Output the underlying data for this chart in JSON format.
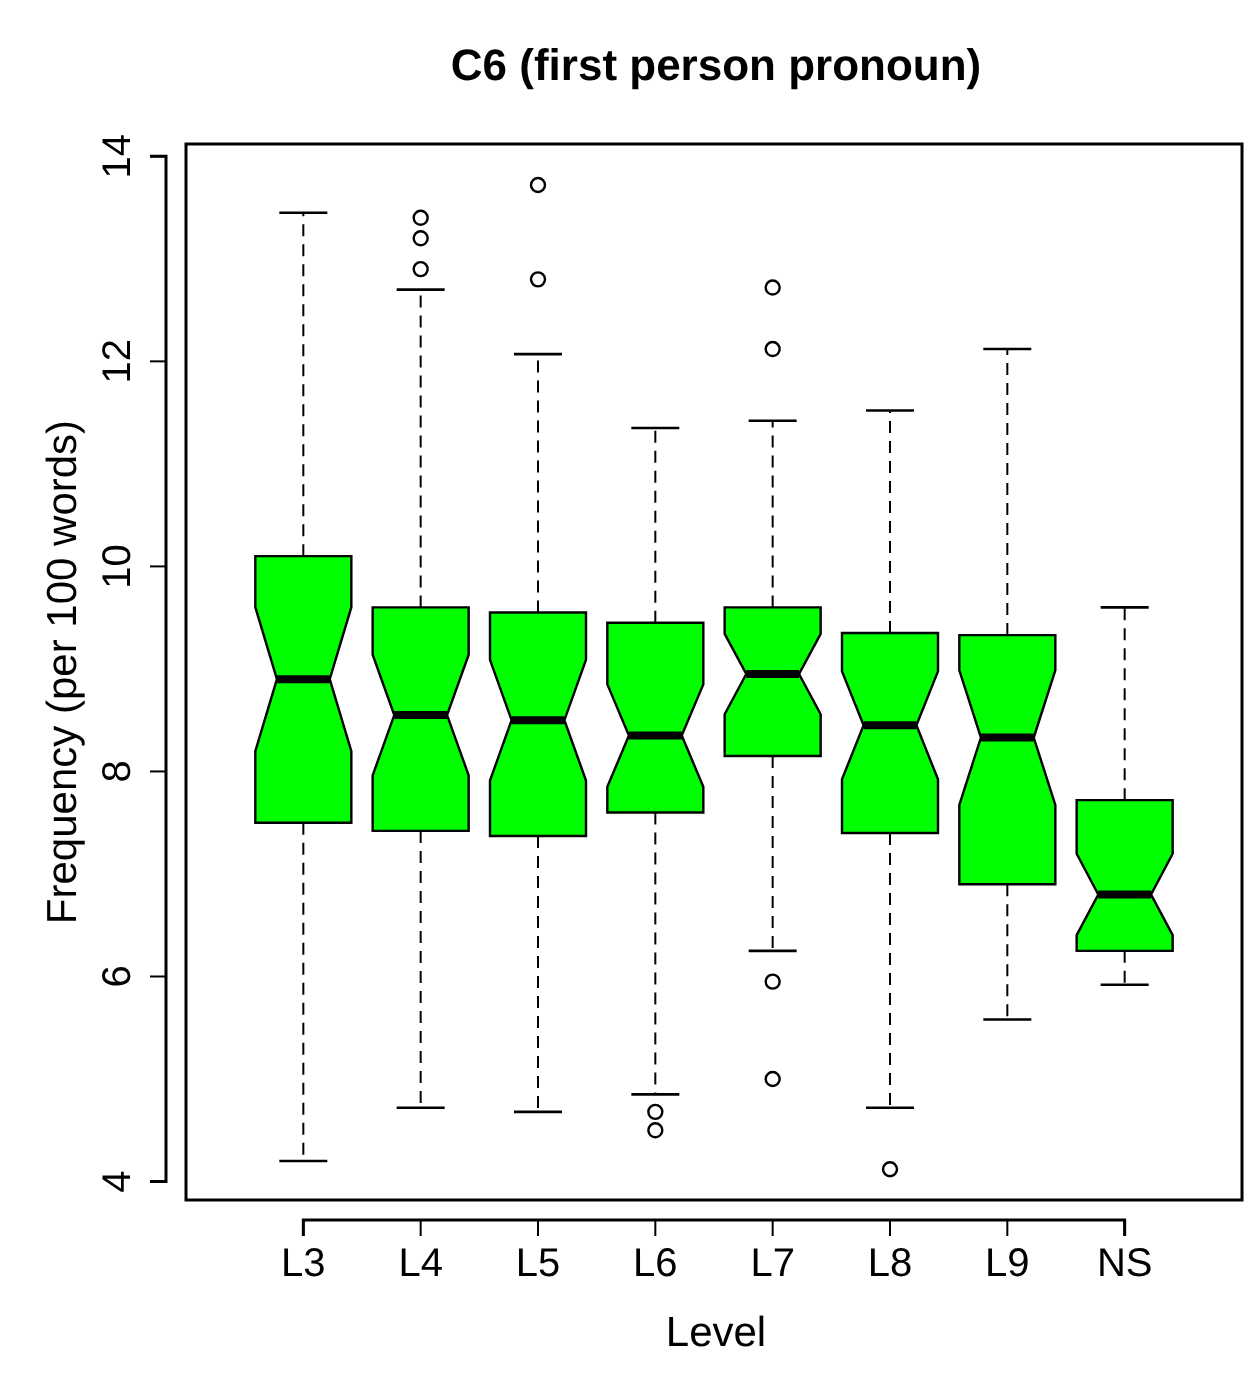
{
  "chart_data": {
    "type": "box",
    "title": "C6 (first person pronoun)",
    "xlabel": "Level",
    "ylabel": "Frequency (per 100 words)",
    "categories": [
      "L3",
      "L4",
      "L5",
      "L6",
      "L7",
      "L8",
      "L9",
      "NS"
    ],
    "series": [
      {
        "color": "#00ff00",
        "boxes": [
          {
            "low": 4.2,
            "q1": 7.5,
            "median": 8.9,
            "q3": 10.1,
            "high": 13.45
          },
          {
            "low": 4.72,
            "q1": 7.42,
            "median": 8.55,
            "q3": 9.6,
            "high": 12.7,
            "outliers": [
              12.9,
              13.2,
              13.4
            ]
          },
          {
            "low": 4.68,
            "q1": 7.37,
            "median": 8.5,
            "q3": 9.55,
            "high": 12.07,
            "outliers": [
              12.8,
              13.72
            ]
          },
          {
            "low": 4.85,
            "q1": 7.6,
            "median": 8.35,
            "q3": 9.45,
            "high": 11.35,
            "outliers": [
              4.68,
              4.5
            ]
          },
          {
            "low": 6.25,
            "q1": 8.15,
            "median": 8.95,
            "q3": 9.6,
            "high": 11.42,
            "outliers": [
              12.72,
              12.12,
              5.95,
              5.0
            ]
          },
          {
            "low": 4.72,
            "q1": 7.4,
            "median": 8.45,
            "q3": 9.35,
            "high": 11.52,
            "outliers": [
              4.12
            ]
          },
          {
            "low": 5.58,
            "q1": 6.9,
            "median": 8.33,
            "q3": 9.33,
            "high": 12.12
          },
          {
            "low": 5.92,
            "q1": 6.25,
            "median": 6.8,
            "q3": 7.72,
            "high": 9.6
          }
        ]
      }
    ],
    "ylim": [
      3.82,
      14.12
    ],
    "yticks": [
      4,
      6,
      8,
      10,
      12,
      14
    ]
  }
}
